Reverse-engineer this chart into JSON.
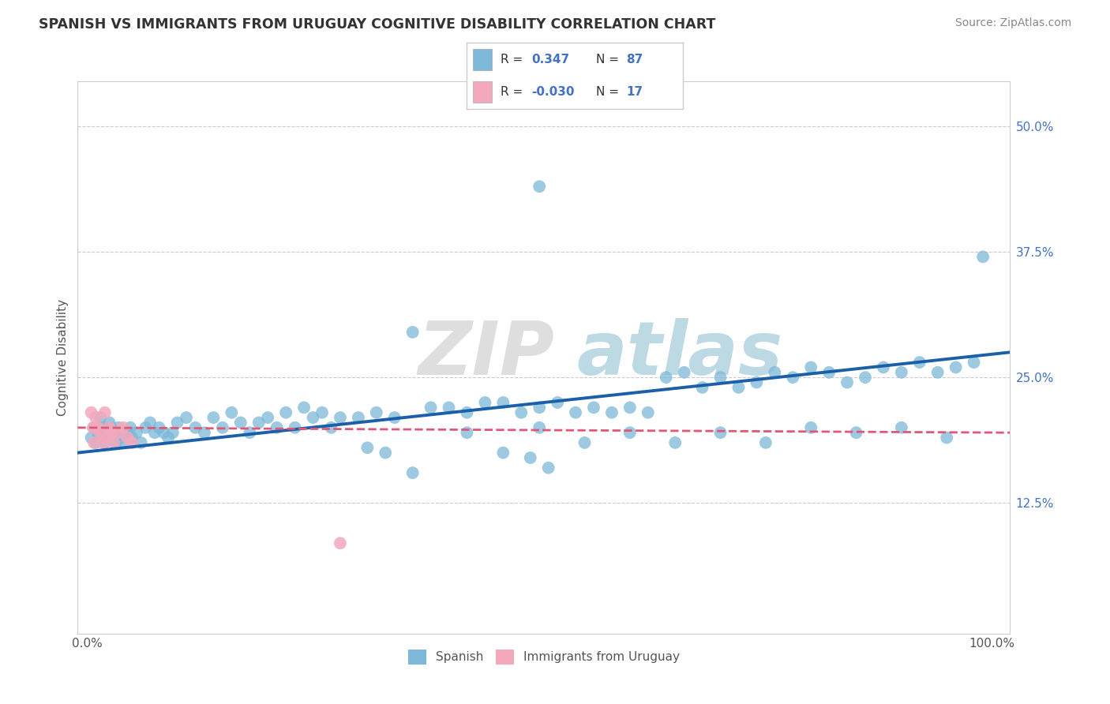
{
  "title": "SPANISH VS IMMIGRANTS FROM URUGUAY COGNITIVE DISABILITY CORRELATION CHART",
  "source": "Source: ZipAtlas.com",
  "ylabel": "Cognitive Disability",
  "yticks": [
    0.125,
    0.25,
    0.375,
    0.5
  ],
  "ytick_labels": [
    "12.5%",
    "25.0%",
    "37.5%",
    "50.0%"
  ],
  "xlim": [
    -0.01,
    1.02
  ],
  "ylim": [
    -0.005,
    0.545
  ],
  "spanish_R": 0.347,
  "spanish_N": 87,
  "uruguay_R": -0.03,
  "uruguay_N": 17,
  "blue_color": "#7db8d8",
  "pink_color": "#f4a8bc",
  "blue_line_color": "#1a5fa8",
  "pink_line_color": "#e05878",
  "background_color": "#ffffff",
  "grid_color": "#cccccc",
  "sp_x": [
    0.005,
    0.008,
    0.01,
    0.012,
    0.015,
    0.018,
    0.02,
    0.022,
    0.025,
    0.027,
    0.03,
    0.032,
    0.035,
    0.038,
    0.04,
    0.042,
    0.045,
    0.048,
    0.05,
    0.055,
    0.06,
    0.065,
    0.07,
    0.075,
    0.08,
    0.085,
    0.09,
    0.095,
    0.1,
    0.11,
    0.12,
    0.13,
    0.14,
    0.15,
    0.16,
    0.17,
    0.18,
    0.19,
    0.2,
    0.21,
    0.22,
    0.23,
    0.24,
    0.25,
    0.26,
    0.27,
    0.28,
    0.3,
    0.32,
    0.34,
    0.36,
    0.38,
    0.4,
    0.42,
    0.44,
    0.46,
    0.48,
    0.5,
    0.52,
    0.54,
    0.56,
    0.58,
    0.6,
    0.62,
    0.64,
    0.66,
    0.68,
    0.7,
    0.72,
    0.74,
    0.76,
    0.78,
    0.8,
    0.82,
    0.84,
    0.86,
    0.88,
    0.9,
    0.92,
    0.94,
    0.96,
    0.98,
    0.31,
    0.49,
    0.5,
    0.51,
    0.99
  ],
  "sp_y": [
    0.19,
    0.2,
    0.185,
    0.195,
    0.21,
    0.2,
    0.185,
    0.195,
    0.205,
    0.2,
    0.195,
    0.185,
    0.2,
    0.19,
    0.195,
    0.185,
    0.195,
    0.2,
    0.19,
    0.195,
    0.185,
    0.2,
    0.205,
    0.195,
    0.2,
    0.195,
    0.19,
    0.195,
    0.205,
    0.21,
    0.2,
    0.195,
    0.21,
    0.2,
    0.215,
    0.205,
    0.195,
    0.205,
    0.21,
    0.2,
    0.215,
    0.2,
    0.22,
    0.21,
    0.215,
    0.2,
    0.21,
    0.21,
    0.215,
    0.21,
    0.295,
    0.22,
    0.22,
    0.215,
    0.225,
    0.225,
    0.215,
    0.22,
    0.225,
    0.215,
    0.22,
    0.215,
    0.22,
    0.215,
    0.25,
    0.255,
    0.24,
    0.25,
    0.24,
    0.245,
    0.255,
    0.25,
    0.26,
    0.255,
    0.245,
    0.25,
    0.26,
    0.255,
    0.265,
    0.255,
    0.26,
    0.265,
    0.18,
    0.17,
    0.44,
    0.16,
    0.37
  ],
  "ur_x": [
    0.005,
    0.007,
    0.008,
    0.01,
    0.012,
    0.015,
    0.018,
    0.02,
    0.022,
    0.025,
    0.028,
    0.03,
    0.035,
    0.04,
    0.045,
    0.05,
    0.28
  ],
  "ur_y": [
    0.215,
    0.2,
    0.185,
    0.21,
    0.2,
    0.195,
    0.185,
    0.215,
    0.19,
    0.2,
    0.195,
    0.185,
    0.195,
    0.2,
    0.19,
    0.185,
    0.085
  ],
  "blue_trend_start": 0.175,
  "blue_trend_end": 0.275,
  "pink_trend_start": 0.2,
  "pink_trend_end": 0.195
}
